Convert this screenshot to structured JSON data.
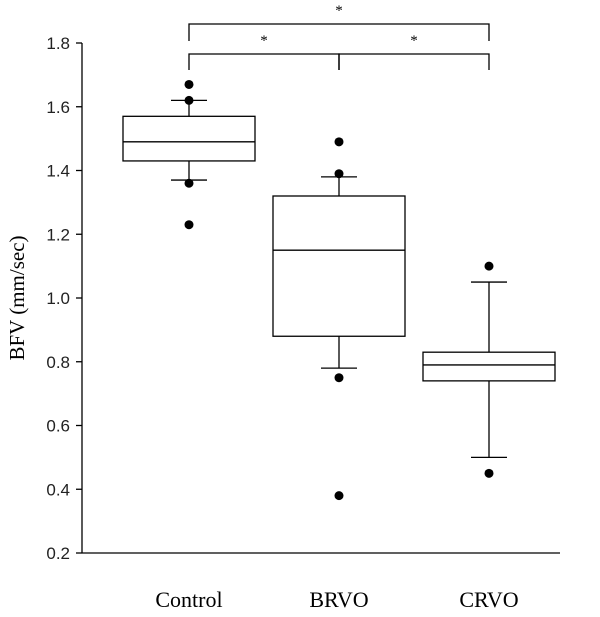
{
  "chart_data": {
    "type": "box",
    "title": "",
    "xlabel": "",
    "ylabel": "BFV (mm/sec)",
    "ylim": [
      0.2,
      1.8
    ],
    "yticks": [
      0.2,
      0.4,
      0.6,
      0.8,
      1.0,
      1.2,
      1.4,
      1.6,
      1.8
    ],
    "ytick_labels": [
      "0.2",
      "0.4",
      "0.6",
      "0.8",
      "1.0",
      "1.2",
      "1.4",
      "1.6",
      "1.8"
    ],
    "grid": false,
    "categories": [
      "Control",
      "BRVO",
      "CRVO"
    ],
    "boxes": [
      {
        "name": "Control",
        "whisker_low": 1.37,
        "q1": 1.43,
        "median": 1.49,
        "q3": 1.57,
        "whisker_high": 1.62,
        "outliers": [
          1.67,
          1.62,
          1.36,
          1.23
        ]
      },
      {
        "name": "BRVO",
        "whisker_low": 0.78,
        "q1": 0.88,
        "median": 1.15,
        "q3": 1.32,
        "whisker_high": 1.38,
        "outliers": [
          1.49,
          1.39,
          0.75,
          0.38
        ]
      },
      {
        "name": "CRVO",
        "whisker_low": 0.5,
        "q1": 0.74,
        "median": 0.79,
        "q3": 0.83,
        "whisker_high": 1.05,
        "outliers": [
          1.1,
          0.45
        ]
      }
    ],
    "significance": [
      {
        "from": "Control",
        "to": "CRVO",
        "label": "*"
      },
      {
        "from": "Control",
        "to": "BRVO",
        "label": "*"
      },
      {
        "from": "BRVO",
        "to": "CRVO",
        "label": "*"
      }
    ]
  }
}
